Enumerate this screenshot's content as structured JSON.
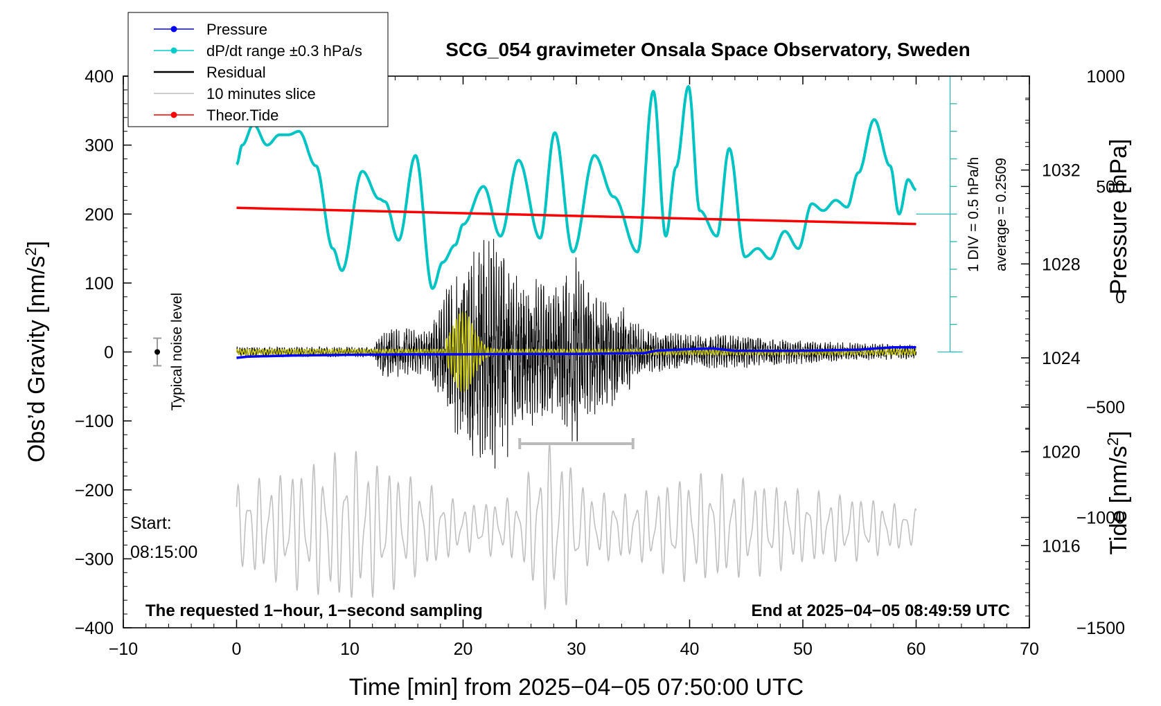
{
  "chart_data": {
    "type": "line",
    "title": "SCG_054 gravimeter Onsala Space Observatory, Sweden",
    "xlabel": "Time [min] from 2025−04−05 07:50:00 UTC",
    "ylabel_left": "Obs’d Gravity [nm/s",
    "ylabel_left_sup": "2",
    "ylabel_left_close": "]",
    "ylabel_right_top": "Pressure [hPa]",
    "ylabel_right_bottom": "Tide [nm/s",
    "ylabel_right_bottom_sup": "2",
    "ylabel_right_bottom_close": "]",
    "xlim": [
      -10,
      70
    ],
    "ylim": [
      -400,
      400
    ],
    "pressure_lim": [
      1012.5,
      1036
    ],
    "tide_lim": [
      -1500,
      1000
    ],
    "x_ticks": [
      -10,
      0,
      10,
      20,
      30,
      40,
      50,
      60,
      70
    ],
    "x_tick_labels": [
      "−10",
      "0",
      "10",
      "20",
      "30",
      "40",
      "50",
      "60",
      "70"
    ],
    "y_ticks": [
      -400,
      -300,
      -200,
      -100,
      0,
      100,
      200,
      300,
      400
    ],
    "y_tick_labels": [
      "−400",
      "−300",
      "−200",
      "−100",
      "0",
      "100",
      "200",
      "300",
      "400"
    ],
    "pressure_ticks": [
      1016,
      1020,
      1024,
      1028,
      1032
    ],
    "pressure_tick_labels": [
      "1016",
      "1020",
      "1024",
      "1028",
      "1032"
    ],
    "tide_ticks": [
      -1500,
      -1000,
      -500,
      0,
      500,
      1000
    ],
    "tide_tick_labels": [
      "−1500",
      "−1000",
      "−500",
      "0",
      "500",
      "1000"
    ],
    "legend": [
      {
        "label": "Pressure",
        "color": "#0000ff",
        "marker": true
      },
      {
        "label": "dP/dt range ±0.3 hPa/s",
        "color": "#00cccc",
        "marker": true
      },
      {
        "label": "Residual",
        "color": "#000000",
        "marker": false
      },
      {
        "label": "10 minutes slice",
        "color": "#bbbbbb",
        "marker": false
      },
      {
        "label": "Theor.Tide",
        "color": "#ff0000",
        "marker": true
      }
    ],
    "colors": {
      "pressure": "#0000ff",
      "dpdt": "#00c3c3",
      "residual": "#000000",
      "highpass": "#cccc00",
      "slice": "#c0c0c0",
      "tide": "#ff0000",
      "startText": "#b0b0b0",
      "scaleBar": "#2cb5b5"
    },
    "series": {
      "pressure": {
        "name": "Pressure",
        "unit": "hPa",
        "x": [
          0,
          1,
          5,
          10,
          15,
          20,
          25,
          30,
          36,
          37,
          39,
          42,
          44,
          50,
          55,
          58,
          60
        ],
        "values": [
          1024.0,
          1024.05,
          1024.1,
          1024.13,
          1024.15,
          1024.15,
          1024.17,
          1024.17,
          1024.2,
          1024.3,
          1024.35,
          1024.4,
          1024.3,
          1024.3,
          1024.35,
          1024.45,
          1024.45
        ]
      },
      "dpdt": {
        "name": "dP/dt range ±0.3 hPa/s",
        "axis": "gravity",
        "x": [
          0,
          0.5,
          1.5,
          2.7,
          3.8,
          4.6,
          5.5,
          7.0,
          8.5,
          9.3,
          11.1,
          12.6,
          13.1,
          14.3,
          15.8,
          17.3,
          18.2,
          19.3,
          20.0,
          21.8,
          23.3,
          24.9,
          26.8,
          28.1,
          29.7,
          31.6,
          33.3,
          35.4,
          36.8,
          37.9,
          38.8,
          39.9,
          40.9,
          42.4,
          43.5,
          44.9,
          46.0,
          47.1,
          48.4,
          49.6,
          50.8,
          51.8,
          52.9,
          53.9,
          54.9,
          56.3,
          57.7,
          58.5,
          59.3,
          60
        ],
        "values": [
          272,
          300,
          330,
          300,
          315,
          315,
          320,
          270,
          150,
          118,
          262,
          222,
          218,
          162,
          285,
          92,
          130,
          155,
          185,
          240,
          168,
          278,
          165,
          318,
          145,
          285,
          225,
          145,
          378,
          168,
          268,
          385,
          205,
          168,
          295,
          138,
          150,
          135,
          175,
          150,
          215,
          205,
          220,
          210,
          260,
          337,
          270,
          200,
          250,
          235
        ]
      },
      "tide": {
        "name": "Theor.Tide",
        "unit": "nm/s2",
        "x": [
          0,
          60
        ],
        "values": [
          403,
          330
        ]
      },
      "residual_envelope": {
        "name": "Residual",
        "x": [
          0,
          12,
          13,
          17,
          18,
          20,
          22,
          24,
          25,
          28,
          30,
          32,
          34,
          36,
          40,
          43,
          48,
          55,
          60
        ],
        "values": [
          6,
          6,
          30,
          25,
          60,
          110,
          130,
          135,
          90,
          75,
          110,
          70,
          55,
          25,
          20,
          20,
          15,
          10,
          8
        ]
      },
      "slice_envelope": {
        "name": "10 minutes slice",
        "x": [
          0,
          5,
          10,
          15,
          20,
          25,
          27,
          29,
          31,
          35,
          40,
          45,
          50,
          55,
          60
        ],
        "values": [
          45,
          65,
          85,
          60,
          25,
          35,
          95,
          85,
          40,
          35,
          60,
          55,
          40,
          35,
          20
        ]
      }
    },
    "noise_bar": {
      "label": "Typical noise level",
      "x": -7,
      "center": 0,
      "half_range": 20
    },
    "slice_bracket": {
      "x_start": 25,
      "x_end": 35,
      "y": -133
    },
    "scale_bar": {
      "div_label": "1 DIV = 0.5 hPa/h",
      "average_label": "average = 0.2509",
      "x": 63,
      "y_top": 400,
      "y_bottom": 0,
      "y_ref": 200
    },
    "start_label_line1": "Start:",
    "start_label_line2": "08:15:00",
    "bottom_left_note": "The requested 1−hour, 1−second sampling",
    "bottom_right_note": "End at 2025−04−05 08:49:59 UTC"
  }
}
